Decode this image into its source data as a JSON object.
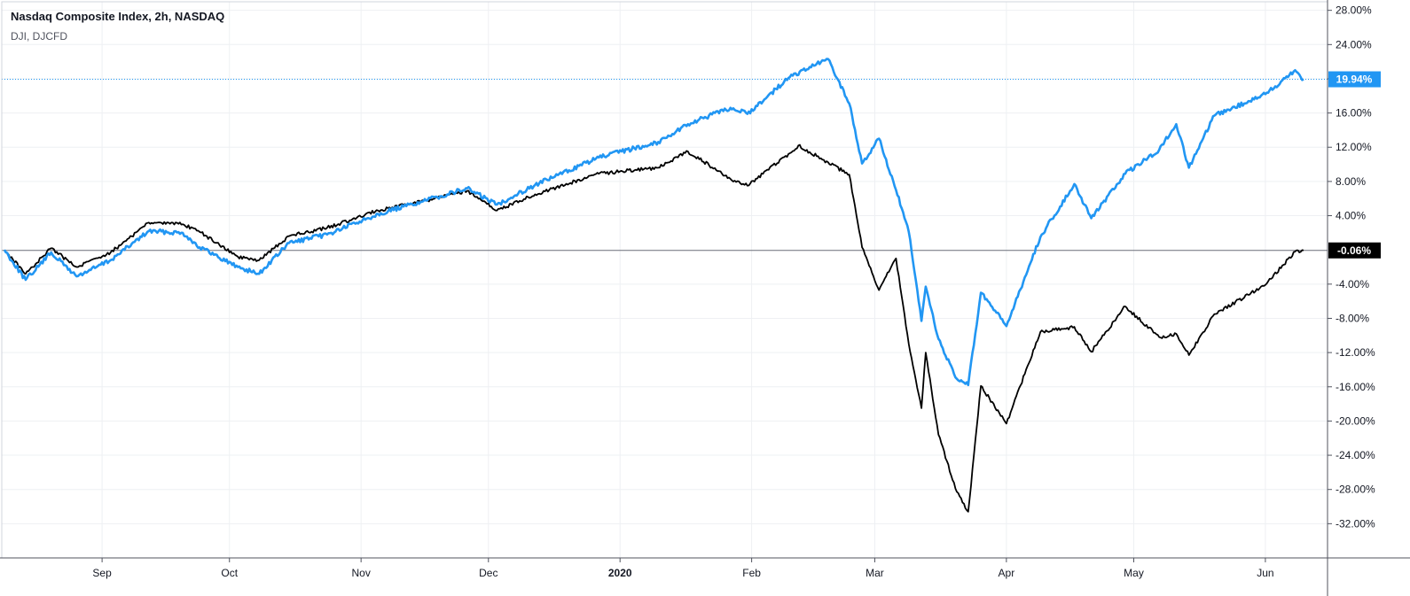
{
  "legend": {
    "main_symbol": "Nasdaq Composite Index, 2h, NASDAQ",
    "compare_symbol": "DJI, DJCFD"
  },
  "colors": {
    "nasdaq": "#2196f3",
    "dji": "#000000",
    "grid": "#eef0f3",
    "axis": "#50535e"
  },
  "chart_data": {
    "type": "line",
    "y_unit": "%",
    "ylim": [
      -36,
      29
    ],
    "y_ticks": [
      "28.00%",
      "24.00%",
      "20.00%",
      "16.00%",
      "12.00%",
      "8.00%",
      "4.00%",
      "-4.00%",
      "-8.00%",
      "-12.00%",
      "-16.00%",
      "-20.00%",
      "-24.00%",
      "-28.00%",
      "-32.00%"
    ],
    "y_tick_values": [
      28,
      24,
      20,
      16,
      12,
      8,
      4,
      -4,
      -8,
      -12,
      -16,
      -20,
      -24,
      -28,
      -32
    ],
    "x_ticks": [
      "Sep",
      "Oct",
      "Nov",
      "Dec",
      "2020",
      "Feb",
      "Mar",
      "Apr",
      "May",
      "Jun"
    ],
    "x_tick_dates": [
      "2019-09-01",
      "2019-10-01",
      "2019-11-01",
      "2019-12-01",
      "2020-01-01",
      "2020-02-01",
      "2020-03-01",
      "2020-04-01",
      "2020-05-01",
      "2020-06-01"
    ],
    "x_range": [
      "2019-08-09",
      "2020-06-10"
    ],
    "grid": true,
    "series": [
      {
        "name": "Nasdaq Composite Index",
        "last_label": "19.94%",
        "last_value": 19.94,
        "points": [
          [
            "2019-08-09",
            0
          ],
          [
            "2019-08-14",
            -3.5
          ],
          [
            "2019-08-20",
            -0.3
          ],
          [
            "2019-08-26",
            -3.1
          ],
          [
            "2019-09-03",
            -1.2
          ],
          [
            "2019-09-12",
            2.2
          ],
          [
            "2019-09-20",
            2.0
          ],
          [
            "2019-09-24",
            0.3
          ],
          [
            "2019-10-03",
            -2.0
          ],
          [
            "2019-10-08",
            -2.8
          ],
          [
            "2019-10-15",
            0.8
          ],
          [
            "2019-10-24",
            1.8
          ],
          [
            "2019-11-05",
            4.2
          ],
          [
            "2019-11-15",
            5.6
          ],
          [
            "2019-11-26",
            7.2
          ],
          [
            "2019-12-03",
            5.3
          ],
          [
            "2019-12-12",
            7.6
          ],
          [
            "2019-12-27",
            10.8
          ],
          [
            "2020-01-10",
            12.6
          ],
          [
            "2020-01-17",
            14.7
          ],
          [
            "2020-01-27",
            16.6
          ],
          [
            "2020-01-31",
            15.9
          ],
          [
            "2020-02-10",
            20.2
          ],
          [
            "2020-02-19",
            22.3
          ],
          [
            "2020-02-24",
            17.1
          ],
          [
            "2020-02-27",
            10.1
          ],
          [
            "2020-03-02",
            13.0
          ],
          [
            "2020-03-06",
            7.0
          ],
          [
            "2020-03-09",
            2.1
          ],
          [
            "2020-03-12",
            -8.3
          ],
          [
            "2020-03-13",
            -4.3
          ],
          [
            "2020-03-16",
            -10.4
          ],
          [
            "2020-03-20",
            -14.9
          ],
          [
            "2020-03-23",
            -15.8
          ],
          [
            "2020-03-26",
            -5.0
          ],
          [
            "2020-04-01",
            -8.9
          ],
          [
            "2020-04-09",
            1.5
          ],
          [
            "2020-04-17",
            7.7
          ],
          [
            "2020-04-21",
            3.7
          ],
          [
            "2020-04-29",
            8.9
          ],
          [
            "2020-05-07",
            11.7
          ],
          [
            "2020-05-11",
            14.7
          ],
          [
            "2020-05-14",
            9.6
          ],
          [
            "2020-05-20",
            15.7
          ],
          [
            "2020-06-01",
            18.2
          ],
          [
            "2020-06-08",
            21.0
          ],
          [
            "2020-06-10",
            19.94
          ]
        ]
      },
      {
        "name": "DJI",
        "last_label": "-0.06%",
        "last_value": -0.06,
        "points": [
          [
            "2019-08-09",
            0
          ],
          [
            "2019-08-14",
            -2.8
          ],
          [
            "2019-08-20",
            0.2
          ],
          [
            "2019-08-26",
            -2.0
          ],
          [
            "2019-09-03",
            -0.3
          ],
          [
            "2019-09-12",
            3.2
          ],
          [
            "2019-09-20",
            3.0
          ],
          [
            "2019-09-24",
            2.1
          ],
          [
            "2019-10-03",
            -0.8
          ],
          [
            "2019-10-08",
            -1.2
          ],
          [
            "2019-10-15",
            1.6
          ],
          [
            "2019-10-24",
            2.6
          ],
          [
            "2019-11-05",
            4.6
          ],
          [
            "2019-11-15",
            5.6
          ],
          [
            "2019-11-26",
            6.9
          ],
          [
            "2019-12-03",
            4.6
          ],
          [
            "2019-12-12",
            6.5
          ],
          [
            "2019-12-27",
            8.9
          ],
          [
            "2020-01-10",
            9.6
          ],
          [
            "2020-01-17",
            11.5
          ],
          [
            "2020-01-27",
            8.3
          ],
          [
            "2020-01-31",
            7.5
          ],
          [
            "2020-02-10",
            11.3
          ],
          [
            "2020-02-12",
            12.2
          ],
          [
            "2020-02-24",
            8.8
          ],
          [
            "2020-02-27",
            0.3
          ],
          [
            "2020-03-02",
            -4.7
          ],
          [
            "2020-03-06",
            -1.0
          ],
          [
            "2020-03-09",
            -11.0
          ],
          [
            "2020-03-12",
            -18.5
          ],
          [
            "2020-03-13",
            -12.0
          ],
          [
            "2020-03-16",
            -21.6
          ],
          [
            "2020-03-20",
            -27.9
          ],
          [
            "2020-03-23",
            -30.6
          ],
          [
            "2020-03-26",
            -15.9
          ],
          [
            "2020-04-01",
            -20.3
          ],
          [
            "2020-04-09",
            -9.6
          ],
          [
            "2020-04-17",
            -9.0
          ],
          [
            "2020-04-21",
            -11.9
          ],
          [
            "2020-04-29",
            -6.6
          ],
          [
            "2020-05-07",
            -10.2
          ],
          [
            "2020-05-11",
            -9.8
          ],
          [
            "2020-05-14",
            -12.3
          ],
          [
            "2020-05-20",
            -7.5
          ],
          [
            "2020-06-01",
            -4.1
          ],
          [
            "2020-06-08",
            -0.2
          ],
          [
            "2020-06-10",
            -0.06
          ]
        ]
      }
    ]
  }
}
